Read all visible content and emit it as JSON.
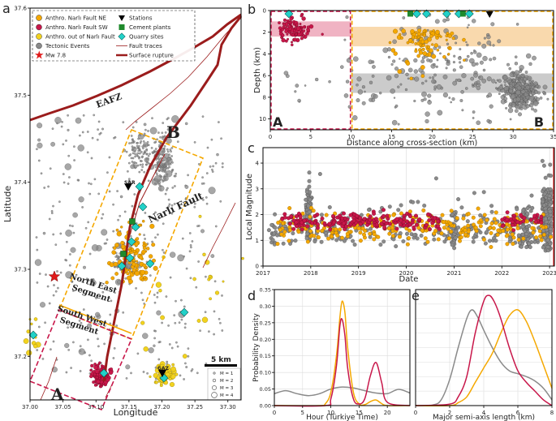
{
  "colors": {
    "ne": "#f5a800",
    "sw": "#c8174a",
    "out": "#f2d21e",
    "tectonic": "#8a8a8a",
    "fault": "#9b1c1c",
    "station": "#000000",
    "cement": "#1f8a2c",
    "quarry": "#21d1c8",
    "mw": "#e01a1a",
    "band_sw": "#eca0b4",
    "band_ne": "#f6c98a",
    "band_grey": "#b9b9b9"
  },
  "panel_a": {
    "letter": "a",
    "xlabel": "Longitude",
    "ylabel": "Latitude",
    "xticks": [
      "37.00",
      "37.05",
      "37.10",
      "37.15",
      "37.20",
      "37.25",
      "37.30"
    ],
    "yticks": [
      "37.2",
      "37.3",
      "37.4",
      "37.5",
      "37.6"
    ],
    "legend_left": [
      "Anthro. Narlı Fault NE",
      "Anthro. Narlı Fault SW",
      "Anthro. out of Narlı Fault",
      "Tectonic Events",
      "Mw 7.8"
    ],
    "legend_right": [
      "Stations",
      "Cement plants",
      "Quarry sites",
      "Fault traces",
      "Surface rupture"
    ],
    "labels": {
      "eafz": "EAFZ",
      "b": "B",
      "a": "A",
      "fault": "Narlı Fault",
      "ne_segment": "North East\nSegment",
      "sw_segment": "South West\nSegment",
      "sar": "SAR",
      "gaz": "GAZ",
      "scale": "5 km"
    },
    "mag_legend": [
      "M = 1",
      "M = 2",
      "M = 3",
      "M = 4"
    ]
  },
  "chart_data": [
    {
      "panel": "b",
      "type": "scatter",
      "title": "",
      "xlabel": "Distance along cross-section (km)",
      "ylabel": "Depth (km)",
      "xlim": [
        0,
        35
      ],
      "ylim": [
        11,
        0
      ],
      "xticks": [
        0,
        5,
        10,
        15,
        20,
        25,
        30,
        35
      ],
      "yticks": [
        0,
        2,
        4,
        6,
        8,
        10
      ],
      "section_labels": [
        "A",
        "B"
      ],
      "segment_boundary_km": 10,
      "depth_bands": [
        {
          "name": "SW band",
          "x": [
            0,
            10
          ],
          "depth": [
            1.0,
            2.4
          ]
        },
        {
          "name": "NE band",
          "x": [
            10,
            35
          ],
          "depth": [
            1.5,
            3.3
          ]
        },
        {
          "name": "Tectonic band",
          "x": [
            10,
            35
          ],
          "depth": [
            5.8,
            7.6
          ]
        }
      ],
      "surface_markers": [
        {
          "type": "quarry",
          "x": 2.3
        },
        {
          "type": "cement",
          "x": 17.3
        },
        {
          "type": "quarry",
          "x": 18.1
        },
        {
          "type": "quarry",
          "x": 19.3
        },
        {
          "type": "quarry",
          "x": 21.8
        },
        {
          "type": "quarry",
          "x": 23.3
        },
        {
          "type": "cement",
          "x": 23.8
        },
        {
          "type": "quarry",
          "x": 24.6
        },
        {
          "type": "station",
          "x": 27.1
        }
      ]
    },
    {
      "panel": "c",
      "type": "scatter",
      "xlabel": "Date",
      "ylabel": "Local Magnitude",
      "xlim": [
        2017.0,
        2023.1
      ],
      "ylim": [
        0,
        4.6
      ],
      "xticks": [
        "2017",
        "2018",
        "2019",
        "2020",
        "2021",
        "2022",
        "2023"
      ],
      "yticks": [
        0,
        1,
        2,
        3,
        4
      ],
      "mainshock_date": 2023.09
    },
    {
      "panel": "d",
      "type": "line",
      "xlabel": "Hour (Türkiye Time)",
      "ylabel": "Probability Density",
      "xlim": [
        0,
        24
      ],
      "ylim": [
        0,
        0.35
      ],
      "xticks": [
        0,
        5,
        10,
        15,
        20
      ],
      "yticks": [
        "0.00",
        "0.05",
        "0.10",
        "0.15",
        "0.20",
        "0.25",
        "0.30",
        "0.35"
      ],
      "series": [
        {
          "name": "Tectonic",
          "x": [
            0,
            2,
            4,
            6,
            8,
            10,
            12,
            14,
            16,
            18,
            20,
            22,
            24
          ],
          "values": [
            0.036,
            0.045,
            0.036,
            0.03,
            0.036,
            0.05,
            0.056,
            0.053,
            0.045,
            0.038,
            0.036,
            0.049,
            0.038
          ]
        },
        {
          "name": "Anthro. NE",
          "x": [
            0,
            8,
            9,
            10,
            11,
            11.6,
            12,
            12.5,
            13,
            14,
            15,
            16,
            17,
            18,
            19,
            20,
            24
          ],
          "values": [
            0,
            0,
            0.005,
            0.04,
            0.15,
            0.265,
            0.315,
            0.28,
            0.17,
            0.04,
            0.005,
            0.003,
            0.012,
            0.017,
            0.006,
            0,
            0
          ]
        },
        {
          "name": "Anthro. SW",
          "x": [
            0,
            9,
            10,
            11,
            11.6,
            12,
            12.5,
            13,
            14,
            15,
            16,
            17,
            18,
            19,
            20,
            24
          ],
          "values": [
            0,
            0,
            0.02,
            0.12,
            0.24,
            0.26,
            0.21,
            0.11,
            0.02,
            0.005,
            0.02,
            0.09,
            0.13,
            0.07,
            0.01,
            0
          ]
        }
      ]
    },
    {
      "panel": "e",
      "type": "line",
      "xlabel": "Major semi-axis length (km)",
      "ylabel": "",
      "xlim": [
        0,
        8
      ],
      "ylim": [
        0,
        0.4
      ],
      "xticks": [
        0,
        2,
        4,
        6,
        8
      ],
      "series": [
        {
          "name": "Tectonic",
          "x": [
            0,
            1,
            1.5,
            2,
            2.5,
            3,
            3.3,
            3.6,
            4,
            4.5,
            5,
            5.5,
            6,
            6.5,
            7,
            7.5,
            8
          ],
          "values": [
            0,
            0.002,
            0.02,
            0.09,
            0.2,
            0.3,
            0.33,
            0.31,
            0.26,
            0.2,
            0.15,
            0.12,
            0.11,
            0.1,
            0.085,
            0.06,
            0.02
          ]
        },
        {
          "name": "Anthro. NE",
          "x": [
            0,
            2,
            2.5,
            3,
            3.5,
            4,
            4.5,
            5,
            5.5,
            6,
            6.5,
            7,
            7.5,
            8
          ],
          "values": [
            0,
            0,
            0.01,
            0.03,
            0.08,
            0.13,
            0.18,
            0.25,
            0.31,
            0.33,
            0.29,
            0.22,
            0.14,
            0.06
          ]
        },
        {
          "name": "Anthro. SW",
          "x": [
            0,
            2,
            2.5,
            3,
            3.5,
            4,
            4.3,
            4.6,
            5,
            5.5,
            6,
            6.5,
            7,
            7.5,
            8
          ],
          "values": [
            0,
            0.005,
            0.03,
            0.1,
            0.25,
            0.36,
            0.38,
            0.36,
            0.3,
            0.2,
            0.12,
            0.08,
            0.05,
            0.02,
            0
          ]
        }
      ]
    }
  ],
  "panel_letters": {
    "b": "b",
    "c": "c",
    "d": "d",
    "e": "e"
  }
}
